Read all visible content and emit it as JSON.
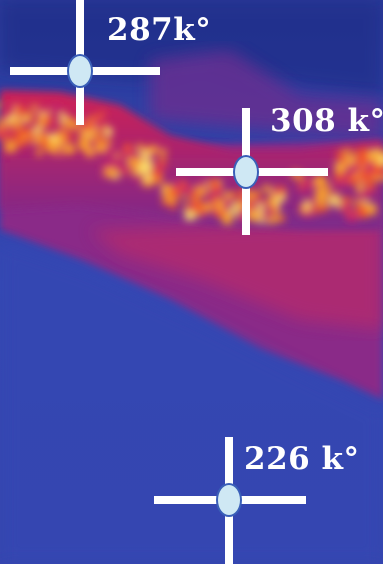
{
  "thermal_image": {
    "palette": [
      "#3344b0",
      "#5a2c8f",
      "#c4246a",
      "#f0532a",
      "#f8a02a",
      "#fce06a"
    ],
    "background_color": "#3344b0"
  },
  "markers": [
    {
      "label": "287k°"
    },
    {
      "label": "308 k°"
    },
    {
      "label": "226 k°"
    }
  ]
}
